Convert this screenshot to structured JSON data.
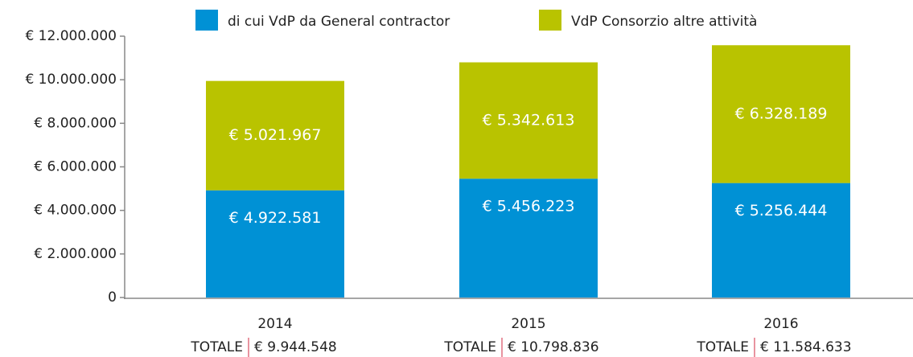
{
  "chart_data": {
    "type": "stacked_bar",
    "categories": [
      "2014",
      "2015",
      "2016"
    ],
    "series": [
      {
        "name": "di cui VdP da General contractor",
        "color": "#0091d5",
        "values": [
          4922581,
          5456223,
          5256444
        ],
        "value_labels": [
          "€ 4.922.581",
          "€ 5.456.223",
          "€ 5.256.444"
        ]
      },
      {
        "name": "VdP Consorzio altre attività",
        "color": "#b9c300",
        "values": [
          5021967,
          5342613,
          6328189
        ],
        "value_labels": [
          "€ 5.021.967",
          "€ 5.342.613",
          "€ 6.328.189"
        ]
      }
    ],
    "ylim": [
      0,
      12000000
    ],
    "yticks": [
      0,
      {
        "value": 2000000,
        "label": "€ 2.000.000"
      },
      {
        "value": 4000000,
        "label": "€ 4.000.000"
      },
      {
        "value": 6000000,
        "label": "€ 6.000.000"
      },
      {
        "value": 8000000,
        "label": "€ 8.000.000"
      },
      {
        "value": 10000000,
        "label": "€ 10.000.000"
      },
      {
        "value": 12000000,
        "label": "€ 12.000.000"
      }
    ],
    "total_label": "TOTALE",
    "totals": [
      "€ 9.944.548",
      "€ 10.798.836",
      "€ 11.584.633"
    ],
    "legend": "top"
  }
}
